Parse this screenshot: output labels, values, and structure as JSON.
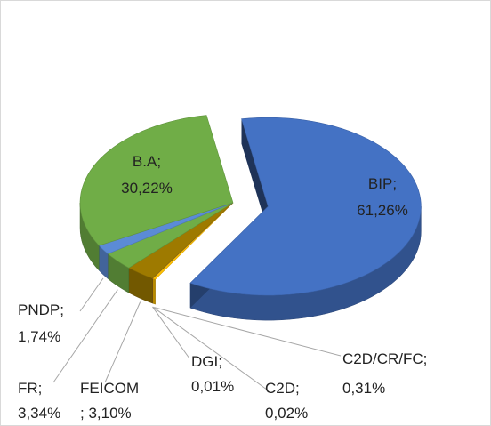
{
  "chart_data": {
    "type": "pie3d",
    "label_separator": ";",
    "categories": [
      "BIP",
      "C2D/CR/FC",
      "C2D",
      "DGI",
      "FEICOM",
      "FR",
      "PNDP",
      "B.A"
    ],
    "values": [
      61.26,
      0.31,
      0.02,
      0.01,
      3.1,
      3.34,
      1.74,
      30.22
    ],
    "value_labels": [
      "61,26%",
      "0,31%",
      "0,02%",
      "0,01%",
      "3,10%",
      "3,34%",
      "1,74%",
      "30,22%"
    ],
    "colors": [
      "#4472c4",
      "#ffc000",
      "#a5a5a5",
      "#ed7d31",
      "#9e7a00",
      "#70ad47",
      "#5b8bd6",
      "#70ad47"
    ],
    "exploded": [
      "BIP"
    ]
  }
}
